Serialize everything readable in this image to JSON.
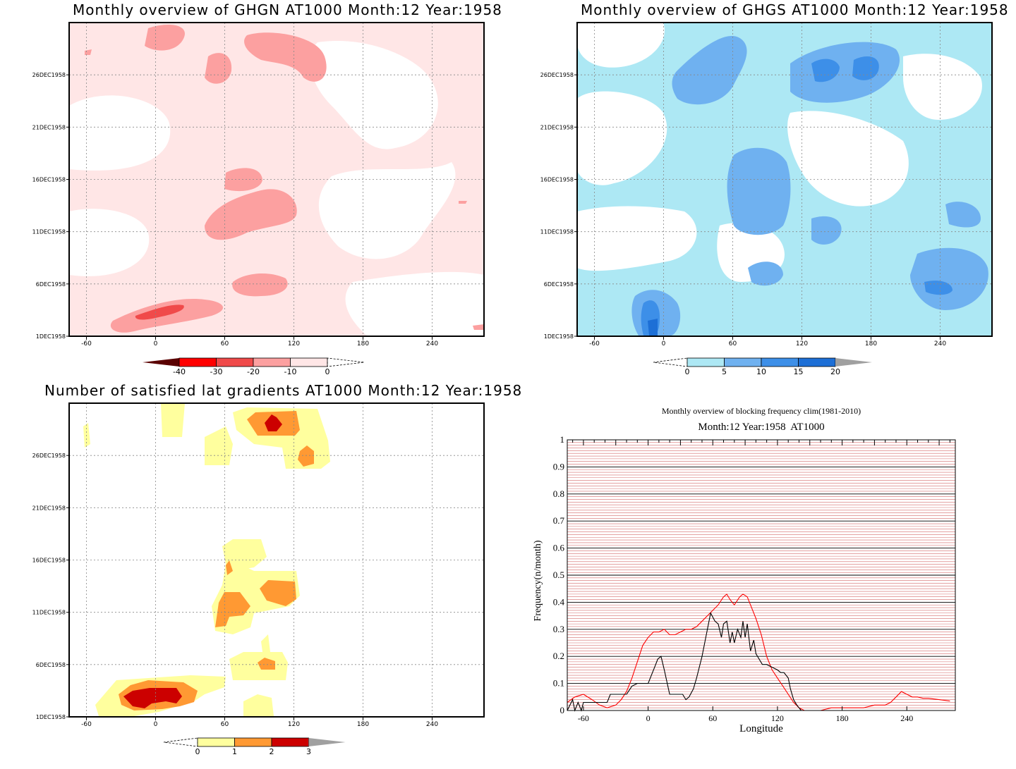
{
  "chart_data": [
    {
      "id": "ghgn",
      "type": "heatmap",
      "title": "Monthly overview of GHGN AT1000 Month:12 Year:1958",
      "xlabel": "",
      "ylabel": "",
      "x_ticks": [
        "-60",
        "0",
        "60",
        "120",
        "180",
        "240"
      ],
      "y_ticks": [
        "1DEC1958",
        "6DEC1958",
        "11DEC1958",
        "16DEC1958",
        "21DEC1958",
        "26DEC1958"
      ],
      "grid": true,
      "colorbar": {
        "labels": [
          "-40",
          "-30",
          "-20",
          "-10",
          "0"
        ],
        "colors": [
          "#5a0000",
          "#ff0000",
          "#f04a4a",
          "#fca0a0",
          "#ffe6e6"
        ]
      }
    },
    {
      "id": "ghgs",
      "type": "heatmap",
      "title": "Monthly overview of GHGS AT1000 Month:12 Year:1958",
      "xlabel": "",
      "ylabel": "",
      "x_ticks": [
        "-60",
        "0",
        "60",
        "120",
        "180",
        "240"
      ],
      "y_ticks": [
        "1DEC1958",
        "6DEC1958",
        "11DEC1958",
        "16DEC1958",
        "21DEC1958",
        "26DEC1958"
      ],
      "grid": true,
      "colorbar": {
        "labels": [
          "0",
          "5",
          "10",
          "15",
          "20"
        ],
        "colors": [
          "#ade8f4",
          "#6fb1f0",
          "#3d8fe8",
          "#1d6fd6",
          "#a0a0a0"
        ]
      }
    },
    {
      "id": "gradients",
      "type": "heatmap",
      "title": "Number of satisfied lat gradients AT1000 Month:12 Year:1958",
      "xlabel": "",
      "ylabel": "",
      "x_ticks": [
        "-60",
        "0",
        "60",
        "120",
        "180",
        "240"
      ],
      "y_ticks": [
        "1DEC1958",
        "6DEC1958",
        "11DEC1958",
        "16DEC1958",
        "21DEC1958",
        "26DEC1958"
      ],
      "grid": true,
      "colorbar": {
        "labels": [
          "0",
          "1",
          "2",
          "3"
        ],
        "colors": [
          "#ffff9e",
          "#ff9933",
          "#cc0000",
          "#a0a0a0"
        ]
      }
    },
    {
      "id": "frequency",
      "type": "line",
      "title": "Monthly overview of blocking frequency clim(1981-2010)",
      "subtitle": "Month:12 Year:1958  AT1000",
      "xlabel": "Longitude",
      "ylabel": "Frequency(n/month)",
      "xlim": [
        -75,
        285
      ],
      "ylim": [
        0,
        1
      ],
      "x_ticks": [
        "-60",
        "0",
        "60",
        "120",
        "180",
        "240"
      ],
      "y_ticks": [
        "0",
        "0.1",
        "0.2",
        "0.3",
        "0.4",
        "0.5",
        "0.6",
        "0.7",
        "0.8",
        "0.9",
        "1"
      ],
      "grid": true,
      "series": [
        {
          "color": "#ff0000",
          "x": [
            -75,
            -68,
            -60,
            -52,
            -45,
            -38,
            -30,
            -25,
            -20,
            -15,
            -10,
            -5,
            0,
            5,
            10,
            15,
            20,
            25,
            30,
            35,
            40,
            45,
            50,
            55,
            60,
            65,
            70,
            73,
            76,
            80,
            85,
            88,
            92,
            95,
            100,
            105,
            110,
            115,
            120,
            125,
            130,
            135,
            140,
            145,
            150,
            160,
            170,
            180,
            190,
            200,
            210,
            220,
            225,
            230,
            235,
            240,
            245,
            250,
            255,
            260,
            270,
            280
          ],
          "y": [
            0.03,
            0.05,
            0.06,
            0.04,
            0.02,
            0.01,
            0.02,
            0.04,
            0.07,
            0.12,
            0.18,
            0.24,
            0.27,
            0.29,
            0.29,
            0.3,
            0.28,
            0.28,
            0.29,
            0.3,
            0.3,
            0.31,
            0.33,
            0.35,
            0.37,
            0.39,
            0.42,
            0.43,
            0.41,
            0.39,
            0.42,
            0.43,
            0.42,
            0.39,
            0.34,
            0.28,
            0.2,
            0.15,
            0.12,
            0.09,
            0.06,
            0.03,
            0.01,
            0,
            0,
            0,
            0.01,
            0.01,
            0.01,
            0.01,
            0.02,
            0.02,
            0.03,
            0.05,
            0.07,
            0.06,
            0.05,
            0.05,
            0.045,
            0.045,
            0.04,
            0.035
          ]
        },
        {
          "color": "#000000",
          "x": [
            -75,
            -70,
            -68,
            -65,
            -62,
            -60,
            -55,
            -45,
            -38,
            -35,
            -30,
            -25,
            -20,
            -15,
            -10,
            -5,
            0,
            3,
            6,
            9,
            12,
            15,
            20,
            25,
            28,
            32,
            35,
            38,
            42,
            45,
            50,
            55,
            58,
            62,
            65,
            68,
            70,
            73,
            76,
            78,
            80,
            83,
            86,
            88,
            90,
            92,
            95,
            98,
            100,
            103,
            106,
            110,
            115,
            120,
            123,
            126,
            130,
            132,
            135,
            138,
            140,
            142
          ],
          "y": [
            0,
            0.04,
            0,
            0.03,
            0,
            0.03,
            0.03,
            0.03,
            0.03,
            0.06,
            0.06,
            0.06,
            0.06,
            0.09,
            0.1,
            0.1,
            0.1,
            0.13,
            0.16,
            0.19,
            0.2,
            0.15,
            0.06,
            0.06,
            0.06,
            0.06,
            0.04,
            0.05,
            0.08,
            0.12,
            0.2,
            0.3,
            0.36,
            0.33,
            0.32,
            0.27,
            0.32,
            0.33,
            0.25,
            0.29,
            0.25,
            0.3,
            0.27,
            0.33,
            0.27,
            0.32,
            0.22,
            0.26,
            0.21,
            0.19,
            0.17,
            0.17,
            0.16,
            0.15,
            0.14,
            0.14,
            0.12,
            0.08,
            0.04,
            0.02,
            0.01,
            0
          ]
        }
      ]
    }
  ]
}
